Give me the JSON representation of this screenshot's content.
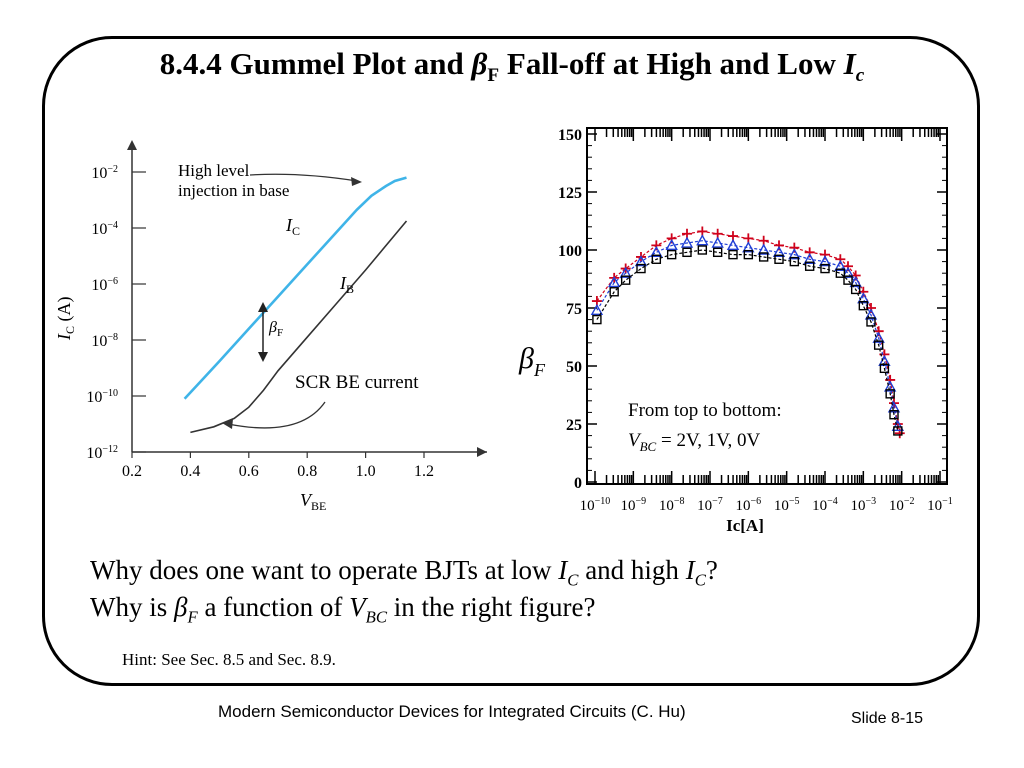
{
  "slide": {
    "title_prefix": "8.4.4  Gummel Plot and ",
    "title_beta": "β",
    "title_beta_sub": "F",
    "title_mid": " Fall-off at High and Low ",
    "title_ic": "I",
    "title_ic_sub": "c",
    "question1_a": "Why does one want to operate BJTs at low ",
    "question1_i1": "I",
    "question1_i1_sub": "C",
    "question1_b": " and high ",
    "question1_i2": "I",
    "question1_i2_sub": "C",
    "question1_c": "?",
    "question2_a": "Why is ",
    "question2_beta": "β",
    "question2_beta_sub": "F",
    "question2_b": " a function of ",
    "question2_v": "V",
    "question2_v_sub": "BC",
    "question2_c": " in the right figure?",
    "hint": "Hint: See Sec. 8.5 and Sec. 8.9.",
    "footer": "Modern Semiconductor Devices for Integrated Circuits (C. Hu)",
    "slide_number": "Slide 8-15"
  },
  "chart_data": [
    {
      "type": "line",
      "name": "gummel-plot",
      "xlabel": "V",
      "xlabel_sub": "BE",
      "ylabel": "I",
      "ylabel_sub": "C",
      "ylabel_unit": " (A)",
      "x_ticks": [
        "0.2",
        "0.4",
        "0.6",
        "0.8",
        "1.0",
        "1.2"
      ],
      "y_ticks": [
        {
          "base": "10",
          "exp": "−2"
        },
        {
          "base": "10",
          "exp": "−4"
        },
        {
          "base": "10",
          "exp": "−6"
        },
        {
          "base": "10",
          "exp": "−8"
        },
        {
          "base": "10",
          "exp": "−10"
        },
        {
          "base": "10",
          "exp": "−12"
        }
      ],
      "xlim": [
        0.2,
        1.2
      ],
      "ylim_log10": [
        -12,
        -2
      ],
      "series": [
        {
          "name": "I",
          "name_sub": "C",
          "color": "#3fb4e8",
          "points": [
            [
              0.38,
              -10.1
            ],
            [
              0.5,
              -8.75
            ],
            [
              0.6,
              -7.6
            ],
            [
              0.7,
              -6.45
            ],
            [
              0.8,
              -5.3
            ],
            [
              0.9,
              -4.15
            ],
            [
              0.97,
              -3.35
            ],
            [
              1.02,
              -2.85
            ],
            [
              1.07,
              -2.5
            ],
            [
              1.1,
              -2.32
            ],
            [
              1.14,
              -2.2
            ]
          ]
        },
        {
          "name": "I",
          "name_sub": "B",
          "color": "#333333",
          "points": [
            [
              0.4,
              -11.3
            ],
            [
              0.48,
              -11.1
            ],
            [
              0.55,
              -10.8
            ],
            [
              0.6,
              -10.4
            ],
            [
              0.65,
              -9.8
            ],
            [
              0.7,
              -9.1
            ],
            [
              0.8,
              -7.9
            ],
            [
              0.9,
              -6.7
            ],
            [
              1.0,
              -5.5
            ],
            [
              1.1,
              -4.25
            ],
            [
              1.14,
              -3.75
            ]
          ]
        }
      ],
      "annotations": {
        "high_level_line1": "High level",
        "high_level_line2": "injection in base",
        "beta": "β",
        "beta_sub": "F",
        "scr": "SCR BE current"
      }
    },
    {
      "type": "scatter",
      "name": "beta-vs-ic",
      "xlabel": "Ic[A]",
      "ylabel": "β",
      "ylabel_sub": "F",
      "x_scale": "log",
      "xlim_log10": [
        -10,
        -1
      ],
      "ylim": [
        0,
        150
      ],
      "y_ticks": [
        "150",
        "125",
        "100",
        "75",
        "50",
        "25",
        "0"
      ],
      "x_ticks": [
        {
          "base": "10",
          "exp": "−10"
        },
        {
          "base": "10",
          "exp": "−9"
        },
        {
          "base": "10",
          "exp": "−8"
        },
        {
          "base": "10",
          "exp": "−7"
        },
        {
          "base": "10",
          "exp": "−6"
        },
        {
          "base": "10",
          "exp": "−5"
        },
        {
          "base": "10",
          "exp": "−4"
        },
        {
          "base": "10",
          "exp": "−3"
        },
        {
          "base": "10",
          "exp": "−2"
        },
        {
          "base": "10",
          "exp": "−1"
        }
      ],
      "series": [
        {
          "label": "2V",
          "color": "#d0021b",
          "marker": "plus",
          "points": [
            [
              -9.95,
              78
            ],
            [
              -9.5,
              88
            ],
            [
              -9.2,
              92
            ],
            [
              -8.8,
              97
            ],
            [
              -8.4,
              102
            ],
            [
              -8.0,
              105
            ],
            [
              -7.6,
              107
            ],
            [
              -7.2,
              108
            ],
            [
              -6.8,
              107
            ],
            [
              -6.4,
              106
            ],
            [
              -6.0,
              105
            ],
            [
              -5.6,
              104
            ],
            [
              -5.2,
              102
            ],
            [
              -4.8,
              101
            ],
            [
              -4.4,
              99
            ],
            [
              -4.0,
              98
            ],
            [
              -3.6,
              96
            ],
            [
              -3.4,
              93
            ],
            [
              -3.2,
              89
            ],
            [
              -3.0,
              82
            ],
            [
              -2.8,
              75
            ],
            [
              -2.6,
              65
            ],
            [
              -2.45,
              55
            ],
            [
              -2.3,
              44
            ],
            [
              -2.2,
              34
            ],
            [
              -2.1,
              25
            ],
            [
              -2.05,
              21
            ]
          ]
        },
        {
          "label": "1V",
          "color": "#1f3fd6",
          "marker": "triangle",
          "points": [
            [
              -9.95,
              74
            ],
            [
              -9.5,
              86
            ],
            [
              -9.2,
              90
            ],
            [
              -8.8,
              95
            ],
            [
              -8.4,
              99
            ],
            [
              -8.0,
              102
            ],
            [
              -7.6,
              103
            ],
            [
              -7.2,
              104
            ],
            [
              -6.8,
              103
            ],
            [
              -6.4,
              102
            ],
            [
              -6.0,
              101
            ],
            [
              -5.6,
              100
            ],
            [
              -5.2,
              99
            ],
            [
              -4.8,
              98
            ],
            [
              -4.4,
              96
            ],
            [
              -4.0,
              95
            ],
            [
              -3.6,
              93
            ],
            [
              -3.4,
              90
            ],
            [
              -3.2,
              86
            ],
            [
              -3.0,
              79
            ],
            [
              -2.8,
              72
            ],
            [
              -2.6,
              62
            ],
            [
              -2.45,
              52
            ],
            [
              -2.3,
              41
            ],
            [
              -2.2,
              32
            ],
            [
              -2.1,
              24
            ]
          ]
        },
        {
          "label": "0V",
          "color": "#000000",
          "marker": "square",
          "points": [
            [
              -9.95,
              70
            ],
            [
              -9.5,
              82
            ],
            [
              -9.2,
              87
            ],
            [
              -8.8,
              92
            ],
            [
              -8.4,
              96
            ],
            [
              -8.0,
              98
            ],
            [
              -7.6,
              99
            ],
            [
              -7.2,
              100
            ],
            [
              -6.8,
              99
            ],
            [
              -6.4,
              98
            ],
            [
              -6.0,
              98
            ],
            [
              -5.6,
              97
            ],
            [
              -5.2,
              96
            ],
            [
              -4.8,
              95
            ],
            [
              -4.4,
              93
            ],
            [
              -4.0,
              92
            ],
            [
              -3.6,
              90
            ],
            [
              -3.4,
              87
            ],
            [
              -3.2,
              83
            ],
            [
              -3.0,
              76
            ],
            [
              -2.8,
              69
            ],
            [
              -2.6,
              59
            ],
            [
              -2.45,
              49
            ],
            [
              -2.3,
              38
            ],
            [
              -2.2,
              29
            ],
            [
              -2.1,
              22
            ]
          ]
        }
      ],
      "legend_line1": "From top to bottom:",
      "legend_v": "V",
      "legend_v_sub": "BC",
      "legend_values": " = 2V, 1V, 0V"
    }
  ]
}
